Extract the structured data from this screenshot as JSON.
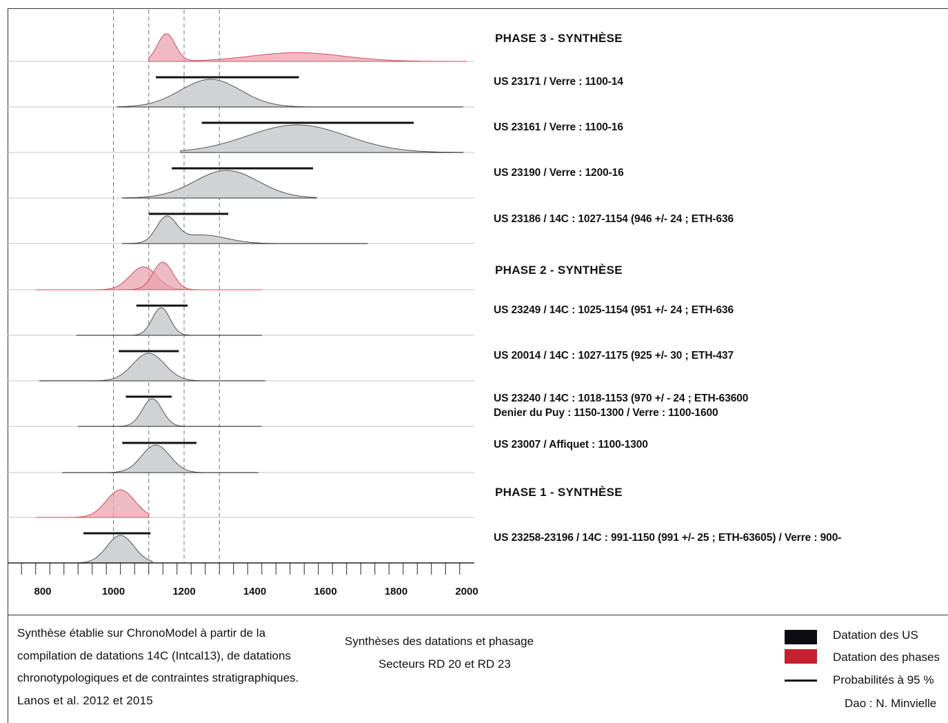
{
  "chart_data": {
    "type": "area",
    "title": "",
    "xlim": [
      780,
      2000
    ],
    "x_ticks": [
      "800",
      "1000",
      "1200",
      "1400",
      "1600",
      "1800",
      "2000"
    ],
    "dashed_reference_lines_x": [
      1000,
      1100,
      1200,
      1300
    ],
    "rows": [
      {
        "label": "PHASE 3 - SYNTHÈSE",
        "kind": "phase",
        "range": [
          1100,
          2000
        ],
        "densities": [
          {
            "components": [
              [
                1150,
                25,
                1.0
              ],
              [
                1520,
                130,
                0.32
              ]
            ]
          }
        ]
      },
      {
        "label": "US 23171 / Verre : 1100-14",
        "kind": "us",
        "range": [
          1010,
          1990
        ],
        "hpd": [
          1120,
          1525
        ],
        "densities": [
          {
            "components": [
              [
                1275,
                85,
                1.0
              ]
            ]
          }
        ]
      },
      {
        "label": "US 23161 / Verre : 1100-16",
        "kind": "us",
        "range": [
          1190,
          1990
        ],
        "hpd": [
          1250,
          1850
        ],
        "densities": [
          {
            "components": [
              [
                1520,
                140,
                1.0
              ]
            ]
          }
        ]
      },
      {
        "label": "US 23190 / Verre : 1200-16",
        "kind": "us",
        "range": [
          1025,
          1575
        ],
        "hpd": [
          1165,
          1565
        ],
        "densities": [
          {
            "components": [
              [
                1320,
                90,
                1.0
              ]
            ]
          }
        ]
      },
      {
        "label": "US 23186 / 14C : 1027-1154 (946 +/- 24 ; ETH-636",
        "kind": "us",
        "range": [
          1025,
          1720
        ],
        "hpd": [
          1100,
          1325
        ],
        "densities": [
          {
            "components": [
              [
                1150,
                28,
                1.0
              ],
              [
                1250,
                70,
                0.35
              ]
            ]
          }
        ]
      },
      {
        "label": "PHASE 2 - SYNTHÈSE",
        "kind": "phase",
        "range": [
          780,
          1420
        ],
        "densities": [
          {
            "components": [
              [
                1085,
                38,
                0.68
              ]
            ]
          },
          {
            "components": [
              [
                1140,
                28,
                0.82
              ]
            ]
          }
        ]
      },
      {
        "label": "US 23249 / 14C : 1025-1154 (951 +/- 24 ; ETH-636",
        "kind": "us",
        "range": [
          895,
          1420
        ],
        "hpd": [
          1065,
          1210
        ],
        "densities": [
          {
            "components": [
              [
                1135,
                25,
                1.0
              ]
            ]
          }
        ]
      },
      {
        "label": "US 20014 / 14C : 1027-1175 (925 +/- 30 ; ETH-437",
        "kind": "us",
        "range": [
          790,
          1430
        ],
        "hpd": [
          1015,
          1185
        ],
        "densities": [
          {
            "components": [
              [
                1100,
                45,
                1.0
              ]
            ]
          }
        ]
      },
      {
        "label": "US 23240 / 14C : 1018-1153 (970 +/ - 24 ; ETH-63600",
        "label2": "Denier du Puy : 1150-1300 / Verre : 1100-1600",
        "kind": "us",
        "range": [
          900,
          1420
        ],
        "hpd": [
          1035,
          1165
        ],
        "densities": [
          {
            "components": [
              [
                1110,
                28,
                1.0
              ]
            ]
          }
        ]
      },
      {
        "label": "US 23007 / Affiquet : 1100-1300",
        "kind": "us",
        "range": [
          855,
          1410
        ],
        "hpd": [
          1025,
          1235
        ],
        "densities": [
          {
            "components": [
              [
                1120,
                40,
                1.0
              ]
            ]
          }
        ]
      },
      {
        "label": "PHASE 1 - SYNTHÈSE",
        "kind": "phase",
        "range": [
          780,
          1100
        ],
        "densities": [
          {
            "components": [
              [
                1020,
                40,
                1.0
              ]
            ]
          }
        ]
      },
      {
        "label": "US 23258-23196 / 14C : 991-1150  (991 +/- 25 ; ETH-63605) / Verre : 900-",
        "kind": "us",
        "range": [
          900,
          1110
        ],
        "hpd": [
          915,
          1105
        ],
        "densities": [
          {
            "components": [
              [
                1020,
                38,
                1.0
              ]
            ]
          }
        ]
      }
    ]
  },
  "footer": {
    "left_lines": [
      "Synthèse établie sur ChronoModel à partir de la",
      "compilation de datations 14C (Intcal13), de datations",
      "chronotypologiques et de contraintes stratigraphiques.",
      "Lanos et al. 2012 et 2015"
    ],
    "center_title": "Synthèses des datations et phasage",
    "center_subtitle": "Secteurs RD 20 et RD 23",
    "legend": {
      "us_label": "Datation des US",
      "phase_label": "Datation des phases",
      "prob_label": "Probabilités à 95 %",
      "us_color": "#0b0b10",
      "phase_color": "#c8202e"
    },
    "credit": "Dao : N. Minvielle"
  },
  "colors": {
    "us_fill": "#d1d2d4",
    "phase_fill": "#e8a1ad",
    "phase_stroke": "#d4485f"
  }
}
